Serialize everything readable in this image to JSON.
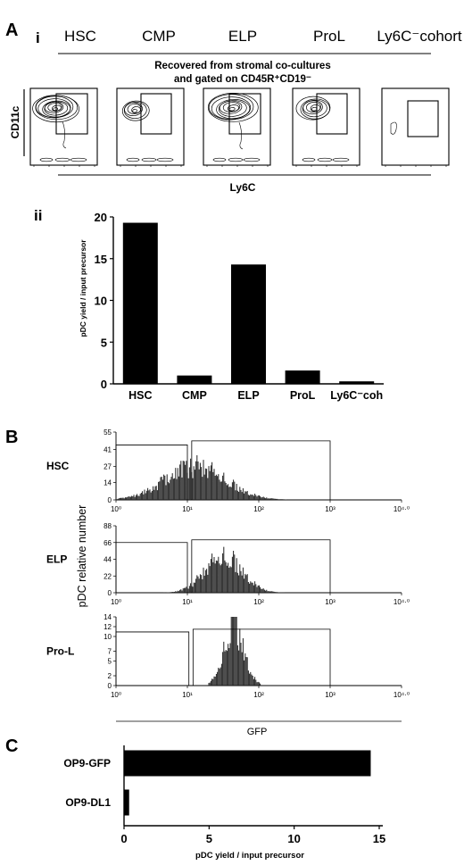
{
  "panel_labels": {
    "a": "A",
    "a_i": "i",
    "a_ii": "ii",
    "b": "B",
    "c": "C"
  },
  "panel_a": {
    "populations": [
      "HSC",
      "CMP",
      "ELP",
      "ProL",
      "Ly6C⁻cohort"
    ],
    "subtitle_line1": "Recovered from stromal co-cultures",
    "subtitle_line2": "and gated on CD45R⁺CD19⁻",
    "y_label": "CD11c",
    "x_label": "Ly6C"
  },
  "chart_data": [
    {
      "type": "bar",
      "panel": "A ii",
      "categories": [
        "HSC",
        "CMP",
        "ELP",
        "ProL",
        "Ly6C⁻coh"
      ],
      "values": [
        19.3,
        1.0,
        14.3,
        1.6,
        0.3
      ],
      "ylabel": "pDC yield / input precursor",
      "ylim": [
        0,
        20
      ],
      "yticks": [
        "0",
        "5",
        "10",
        "15",
        "20"
      ]
    },
    {
      "type": "area",
      "panel": "B",
      "x_scale": "log",
      "xlim": [
        1,
        10000
      ],
      "xticks": [
        "10⁰",
        "10¹",
        "10²",
        "10³",
        "10⁴·⁰"
      ],
      "xlabel": "GFP",
      "ylabel": "pDC relative number",
      "series": [
        {
          "name": "HSC",
          "ylim": [
            0,
            55
          ],
          "yticks": [
            "0",
            "14",
            "27",
            "41",
            "55"
          ],
          "peak_gfp": 13,
          "peak_count": 32,
          "spread": 0.42
        },
        {
          "name": "ELP",
          "ylim": [
            0,
            88
          ],
          "yticks": [
            "0",
            "22",
            "44",
            "66",
            "88"
          ],
          "peak_gfp": 32,
          "peak_count": 56,
          "spread": 0.26
        },
        {
          "name": "Pro-L",
          "ylim": [
            0,
            14
          ],
          "yticks": [
            "0",
            "2",
            "5",
            "7",
            "10",
            "12",
            "14"
          ],
          "peak_gfp": 45,
          "peak_count": 14,
          "spread": 0.14
        }
      ]
    },
    {
      "type": "bar",
      "panel": "C",
      "orientation": "horizontal",
      "categories": [
        "OP9-GFP",
        "OP9-DL1"
      ],
      "values": [
        14.5,
        0.3
      ],
      "xlabel": "pDC yield / input precursor",
      "xlim": [
        0,
        15
      ],
      "xticks": [
        "0",
        "5",
        "10",
        "15"
      ]
    }
  ]
}
